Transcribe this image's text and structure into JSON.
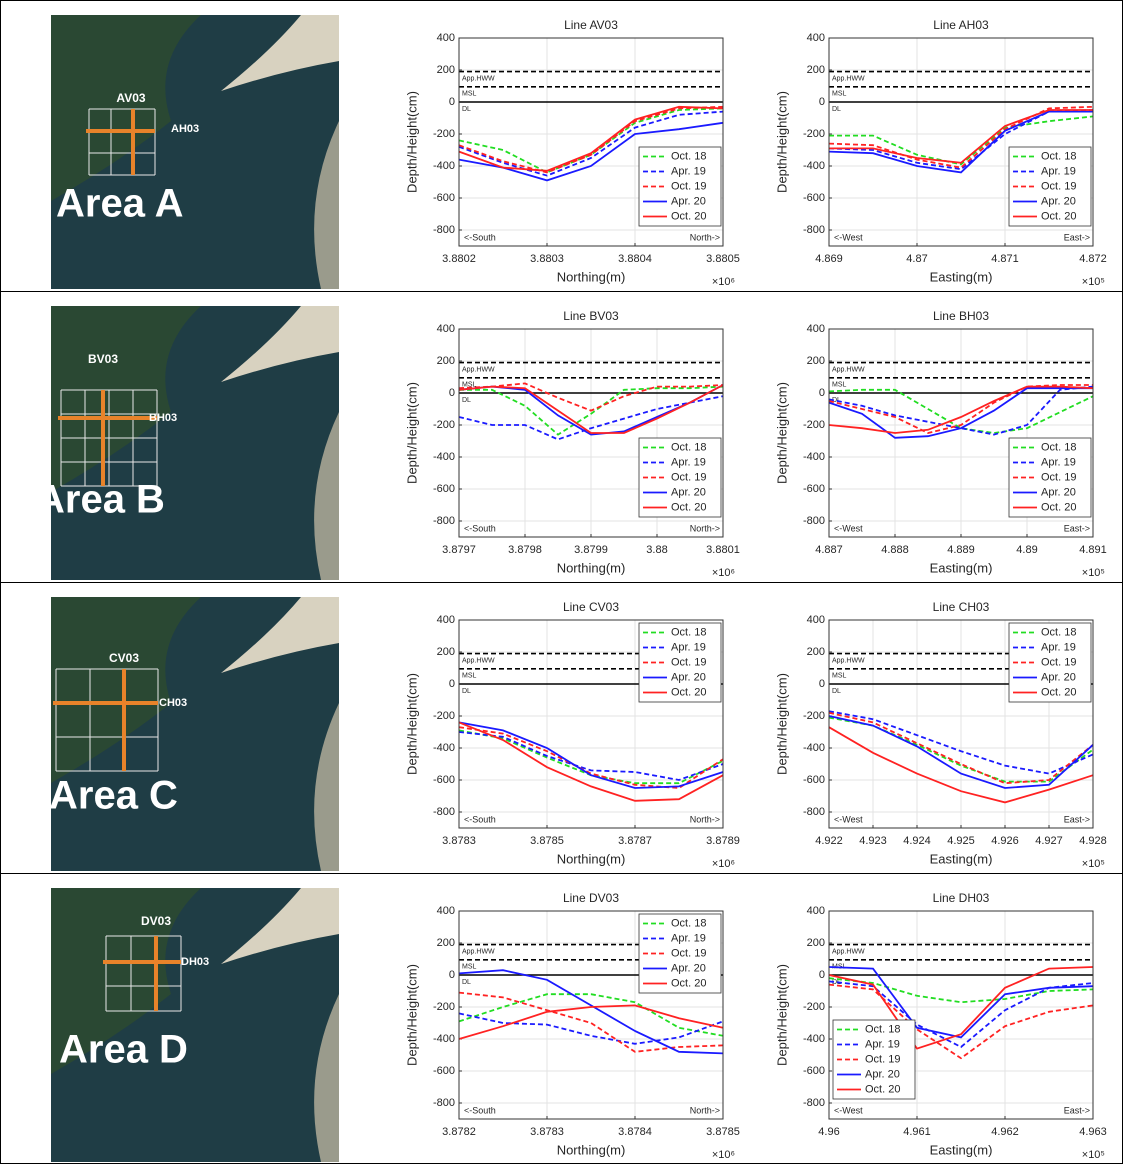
{
  "areas": [
    {
      "label": "Area A",
      "v_line": "AV03",
      "h_line": "AH03"
    },
    {
      "label": "Area B",
      "v_line": "BV03",
      "h_line": "BH03"
    },
    {
      "label": "Area C",
      "v_line": "CV03",
      "h_line": "CH03"
    },
    {
      "label": "Area D",
      "v_line": "DV03",
      "h_line": "DH03"
    }
  ],
  "chart_data": [
    {
      "type": "line",
      "title": "Line AV03",
      "xlabel": "Northing(m)",
      "ylabel": "Depth/Height(cm)",
      "x_multiplier": "×10⁶",
      "xlim": [
        3.8802,
        3.8805
      ],
      "xticks": [
        3.8802,
        3.8803,
        3.8804,
        3.8805
      ],
      "ylim": [
        -900,
        400
      ],
      "yticks": [
        400,
        200,
        0,
        -200,
        -400,
        -600,
        -800
      ],
      "grid": true,
      "legend": "lower right",
      "direction_labels": [
        "<-South",
        "North->"
      ],
      "reference_lines": [
        {
          "label": "App.HWW",
          "value": 190,
          "dash": true
        },
        {
          "label": "MSL",
          "value": 95,
          "dash": true
        },
        {
          "label": "DL",
          "value": 0,
          "dash": false
        }
      ],
      "x": [
        3.8802,
        3.88025,
        3.8803,
        3.88035,
        3.8804,
        3.88045,
        3.8805
      ],
      "series": [
        {
          "name": "Oct. 18",
          "color": "#22dd22",
          "dash": true,
          "values": [
            -240,
            -300,
            -440,
            -330,
            -130,
            -50,
            -40
          ]
        },
        {
          "name": "Apr. 19",
          "color": "#1a1aff",
          "dash": true,
          "values": [
            -280,
            -380,
            -460,
            -350,
            -160,
            -80,
            -60
          ]
        },
        {
          "name": "Oct. 19",
          "color": "#ff2222",
          "dash": true,
          "values": [
            -270,
            -370,
            -440,
            -330,
            -120,
            -40,
            -30
          ]
        },
        {
          "name": "Apr. 20",
          "color": "#1a1aff",
          "dash": false,
          "values": [
            -360,
            -410,
            -490,
            -400,
            -200,
            -170,
            -130
          ]
        },
        {
          "name": "Oct. 20",
          "color": "#ff2222",
          "dash": false,
          "values": [
            -310,
            -410,
            -430,
            -320,
            -110,
            -30,
            -40
          ]
        }
      ]
    },
    {
      "type": "line",
      "title": "Line AH03",
      "xlabel": "Easting(m)",
      "ylabel": "Depth/Height(cm)",
      "x_multiplier": "×10⁵",
      "xlim": [
        4.869,
        4.872
      ],
      "xticks": [
        4.869,
        4.87,
        4.871,
        4.872
      ],
      "ylim": [
        -900,
        400
      ],
      "yticks": [
        400,
        200,
        0,
        -200,
        -400,
        -600,
        -800
      ],
      "grid": true,
      "legend": "lower right",
      "direction_labels": [
        "<-West",
        "East->"
      ],
      "reference_lines": [
        {
          "label": "App.HWW",
          "value": 190,
          "dash": true
        },
        {
          "label": "MSL",
          "value": 95,
          "dash": true
        },
        {
          "label": "DL",
          "value": 0,
          "dash": false
        }
      ],
      "x": [
        4.869,
        4.8695,
        4.87,
        4.8705,
        4.871,
        4.8715,
        4.872
      ],
      "series": [
        {
          "name": "Oct. 18",
          "color": "#22dd22",
          "dash": true,
          "values": [
            -210,
            -210,
            -330,
            -390,
            -160,
            -120,
            -90
          ]
        },
        {
          "name": "Apr. 19",
          "color": "#1a1aff",
          "dash": true,
          "values": [
            -290,
            -300,
            -380,
            -420,
            -200,
            -60,
            -50
          ]
        },
        {
          "name": "Oct. 19",
          "color": "#ff2222",
          "dash": true,
          "values": [
            -260,
            -270,
            -360,
            -410,
            -170,
            -40,
            -30
          ]
        },
        {
          "name": "Apr. 20",
          "color": "#1a1aff",
          "dash": false,
          "values": [
            -310,
            -320,
            -400,
            -440,
            -180,
            -60,
            -60
          ]
        },
        {
          "name": "Oct. 20",
          "color": "#ff2222",
          "dash": false,
          "values": [
            -290,
            -290,
            -350,
            -380,
            -150,
            -50,
            -50
          ]
        }
      ]
    },
    {
      "type": "line",
      "title": "Line BV03",
      "xlabel": "Northing(m)",
      "ylabel": "Depth/Height(cm)",
      "x_multiplier": "×10⁶",
      "xlim": [
        3.8797,
        3.8801
      ],
      "xticks": [
        3.8797,
        3.8798,
        3.8799,
        3.88,
        3.8801
      ],
      "ylim": [
        -900,
        400
      ],
      "yticks": [
        400,
        200,
        0,
        -200,
        -400,
        -600,
        -800
      ],
      "grid": true,
      "legend": "lower right",
      "direction_labels": [
        "<-South",
        "North->"
      ],
      "reference_lines": [
        {
          "label": "App.HWW",
          "value": 190,
          "dash": true
        },
        {
          "label": "MSL",
          "value": 95,
          "dash": true
        },
        {
          "label": "DL",
          "value": 0,
          "dash": false
        }
      ],
      "x": [
        3.8797,
        3.87975,
        3.8798,
        3.87985,
        3.8799,
        3.87995,
        3.88,
        3.88005,
        3.8801
      ],
      "series": [
        {
          "name": "Oct. 18",
          "color": "#22dd22",
          "dash": true,
          "values": [
            20,
            20,
            -80,
            -260,
            -130,
            20,
            30,
            30,
            40
          ]
        },
        {
          "name": "Apr. 19",
          "color": "#1a1aff",
          "dash": true,
          "values": [
            -150,
            -200,
            -200,
            -290,
            -220,
            -160,
            -100,
            -60,
            -20
          ]
        },
        {
          "name": "Oct. 19",
          "color": "#ff2222",
          "dash": true,
          "values": [
            30,
            40,
            60,
            -30,
            -110,
            -20,
            40,
            40,
            50
          ]
        },
        {
          "name": "Apr. 20",
          "color": "#1a1aff",
          "dash": false,
          "values": [
            20,
            40,
            20,
            -140,
            -260,
            -240,
            -150,
            -60,
            50
          ]
        },
        {
          "name": "Oct. 20",
          "color": "#ff2222",
          "dash": false,
          "values": [
            20,
            40,
            30,
            -110,
            -250,
            -250,
            -160,
            -60,
            50
          ]
        }
      ]
    },
    {
      "type": "line",
      "title": "Line BH03",
      "xlabel": "Easting(m)",
      "ylabel": "Depth/Height(cm)",
      "x_multiplier": "×10⁵",
      "xlim": [
        4.887,
        4.891
      ],
      "xticks": [
        4.887,
        4.888,
        4.889,
        4.89,
        4.891
      ],
      "ylim": [
        -900,
        400
      ],
      "yticks": [
        400,
        200,
        0,
        -200,
        -400,
        -600,
        -800
      ],
      "grid": true,
      "legend": "lower right",
      "direction_labels": [
        "<-West",
        "East->"
      ],
      "reference_lines": [
        {
          "label": "App.HWW",
          "value": 190,
          "dash": true
        },
        {
          "label": "MSL",
          "value": 95,
          "dash": true
        },
        {
          "label": "DL",
          "value": 0,
          "dash": false
        }
      ],
      "x": [
        4.887,
        4.8875,
        4.888,
        4.8885,
        4.889,
        4.8895,
        4.89,
        4.8905,
        4.891
      ],
      "series": [
        {
          "name": "Oct. 18",
          "color": "#22dd22",
          "dash": true,
          "values": [
            10,
            20,
            20,
            -100,
            -220,
            -250,
            -220,
            -120,
            -20
          ]
        },
        {
          "name": "Apr. 19",
          "color": "#1a1aff",
          "dash": true,
          "values": [
            -40,
            -80,
            -140,
            -180,
            -220,
            -260,
            -200,
            20,
            40
          ]
        },
        {
          "name": "Oct. 19",
          "color": "#ff2222",
          "dash": true,
          "values": [
            -50,
            -100,
            -150,
            -250,
            -200,
            -60,
            40,
            50,
            50
          ]
        },
        {
          "name": "Apr. 20",
          "color": "#1a1aff",
          "dash": false,
          "values": [
            -60,
            -130,
            -280,
            -270,
            -220,
            -110,
            30,
            30,
            30
          ]
        },
        {
          "name": "Oct. 20",
          "color": "#ff2222",
          "dash": false,
          "values": [
            -200,
            -220,
            -250,
            -230,
            -150,
            -50,
            40,
            40,
            30
          ]
        }
      ]
    },
    {
      "type": "line",
      "title": "Line CV03",
      "xlabel": "Northing(m)",
      "ylabel": "Depth/Height(cm)",
      "x_multiplier": "×10⁶",
      "xlim": [
        3.8783,
        3.8789
      ],
      "xticks": [
        3.8783,
        3.8785,
        3.8787,
        3.8789
      ],
      "ylim": [
        -900,
        400
      ],
      "yticks": [
        400,
        200,
        0,
        -200,
        -400,
        -600,
        -800
      ],
      "grid": true,
      "legend": "upper right",
      "direction_labels": [
        "<-South",
        "North->"
      ],
      "reference_lines": [
        {
          "label": "App.HWW",
          "value": 190,
          "dash": true
        },
        {
          "label": "MSL",
          "value": 95,
          "dash": true
        },
        {
          "label": "DL",
          "value": 0,
          "dash": false
        }
      ],
      "x": [
        3.8783,
        3.8784,
        3.8785,
        3.8786,
        3.8787,
        3.8788,
        3.8789
      ],
      "series": [
        {
          "name": "Oct. 18",
          "color": "#22dd22",
          "dash": true,
          "values": [
            -290,
            -340,
            -460,
            -570,
            -620,
            -620,
            -480
          ]
        },
        {
          "name": "Apr. 19",
          "color": "#1a1aff",
          "dash": true,
          "values": [
            -300,
            -330,
            -450,
            -540,
            -550,
            -600,
            -500
          ]
        },
        {
          "name": "Oct. 19",
          "color": "#ff2222",
          "dash": true,
          "values": [
            -270,
            -310,
            -420,
            -560,
            -630,
            -650,
            -470
          ]
        },
        {
          "name": "Apr. 20",
          "color": "#1a1aff",
          "dash": false,
          "values": [
            -240,
            -290,
            -400,
            -570,
            -650,
            -640,
            -550
          ]
        },
        {
          "name": "Oct. 20",
          "color": "#ff2222",
          "dash": false,
          "values": [
            -240,
            -350,
            -520,
            -640,
            -730,
            -720,
            -570
          ]
        }
      ]
    },
    {
      "type": "line",
      "title": "Line CH03",
      "xlabel": "Easting(m)",
      "ylabel": "Depth/Height(cm)",
      "x_multiplier": "×10⁵",
      "xlim": [
        4.922,
        4.928
      ],
      "xticks": [
        4.922,
        4.923,
        4.924,
        4.925,
        4.926,
        4.927,
        4.928
      ],
      "ylim": [
        -900,
        400
      ],
      "yticks": [
        400,
        200,
        0,
        -200,
        -400,
        -600,
        -800
      ],
      "grid": true,
      "legend": "upper right",
      "direction_labels": [
        "<-West",
        "East->"
      ],
      "reference_lines": [
        {
          "label": "App.HWW",
          "value": 190,
          "dash": true
        },
        {
          "label": "MSL",
          "value": 95,
          "dash": true
        },
        {
          "label": "DL",
          "value": 0,
          "dash": false
        }
      ],
      "x": [
        4.922,
        4.923,
        4.924,
        4.925,
        4.926,
        4.927,
        4.928
      ],
      "series": [
        {
          "name": "Oct. 18",
          "color": "#22dd22",
          "dash": true,
          "values": [
            -210,
            -260,
            -380,
            -510,
            -610,
            -610,
            -410
          ]
        },
        {
          "name": "Apr. 19",
          "color": "#1a1aff",
          "dash": true,
          "values": [
            -170,
            -220,
            -320,
            -420,
            -510,
            -560,
            -440
          ]
        },
        {
          "name": "Oct. 19",
          "color": "#ff2222",
          "dash": true,
          "values": [
            -180,
            -240,
            -370,
            -500,
            -620,
            -600,
            -380
          ]
        },
        {
          "name": "Apr. 20",
          "color": "#1a1aff",
          "dash": false,
          "values": [
            -200,
            -260,
            -390,
            -560,
            -650,
            -630,
            -380
          ]
        },
        {
          "name": "Oct. 20",
          "color": "#ff2222",
          "dash": false,
          "values": [
            -270,
            -430,
            -560,
            -670,
            -740,
            -660,
            -570
          ]
        }
      ]
    },
    {
      "type": "line",
      "title": "Line DV03",
      "xlabel": "Northing(m)",
      "ylabel": "Depth/Height(cm)",
      "x_multiplier": "×10⁶",
      "xlim": [
        3.8782,
        3.8785
      ],
      "xticks": [
        3.8782,
        3.8783,
        3.8784,
        3.8785
      ],
      "ylim": [
        -900,
        400
      ],
      "yticks": [
        400,
        200,
        0,
        -200,
        -400,
        -600,
        -800
      ],
      "grid": true,
      "legend": "upper right",
      "direction_labels": [
        "<-South",
        "North->"
      ],
      "reference_lines": [
        {
          "label": "App.HWW",
          "value": 190,
          "dash": true
        },
        {
          "label": "MSL",
          "value": 95,
          "dash": true
        },
        {
          "label": "DL",
          "value": 0,
          "dash": false
        }
      ],
      "x": [
        3.8782,
        3.87825,
        3.8783,
        3.87835,
        3.8784,
        3.87845,
        3.8785
      ],
      "series": [
        {
          "name": "Oct. 18",
          "color": "#22dd22",
          "dash": true,
          "values": [
            -290,
            -200,
            -120,
            -120,
            -170,
            -330,
            -380
          ]
        },
        {
          "name": "Apr. 19",
          "color": "#1a1aff",
          "dash": true,
          "values": [
            -240,
            -300,
            -310,
            -380,
            -430,
            -390,
            -290
          ]
        },
        {
          "name": "Oct. 19",
          "color": "#ff2222",
          "dash": true,
          "values": [
            -110,
            -140,
            -220,
            -300,
            -480,
            -450,
            -440
          ]
        },
        {
          "name": "Apr. 20",
          "color": "#1a1aff",
          "dash": false,
          "values": [
            10,
            30,
            -30,
            -190,
            -350,
            -480,
            -490
          ]
        },
        {
          "name": "Oct. 20",
          "color": "#ff2222",
          "dash": false,
          "values": [
            -400,
            -320,
            -230,
            -200,
            -190,
            -270,
            -330
          ]
        }
      ]
    },
    {
      "type": "line",
      "title": "Line DH03",
      "xlabel": "Easting(m)",
      "ylabel": "Depth/Height(cm)",
      "x_multiplier": "×10⁵",
      "xlim": [
        4.96,
        4.963
      ],
      "xticks": [
        4.96,
        4.961,
        4.962,
        4.963
      ],
      "ylim": [
        -900,
        400
      ],
      "yticks": [
        400,
        200,
        0,
        -200,
        -400,
        -600,
        -800
      ],
      "grid": true,
      "legend": "lower left",
      "direction_labels": [
        "<-West",
        "East->"
      ],
      "reference_lines": [
        {
          "label": "App.HWW",
          "value": 190,
          "dash": true
        },
        {
          "label": "MSL",
          "value": 95,
          "dash": true
        },
        {
          "label": "DL",
          "value": 0,
          "dash": false
        }
      ],
      "x": [
        4.96,
        4.9605,
        4.961,
        4.9615,
        4.962,
        4.9625,
        4.963
      ],
      "series": [
        {
          "name": "Oct. 18",
          "color": "#22dd22",
          "dash": true,
          "values": [
            -20,
            -50,
            -130,
            -170,
            -150,
            -100,
            -90
          ]
        },
        {
          "name": "Apr. 19",
          "color": "#1a1aff",
          "dash": true,
          "values": [
            -40,
            -70,
            -310,
            -450,
            -220,
            -80,
            -50
          ]
        },
        {
          "name": "Oct. 19",
          "color": "#ff2222",
          "dash": true,
          "values": [
            -60,
            -90,
            -340,
            -520,
            -320,
            -230,
            -190
          ]
        },
        {
          "name": "Apr. 20",
          "color": "#1a1aff",
          "dash": false,
          "values": [
            50,
            40,
            -330,
            -390,
            -120,
            -80,
            -70
          ]
        },
        {
          "name": "Oct. 20",
          "color": "#ff2222",
          "dash": false,
          "values": [
            0,
            -60,
            -460,
            -370,
            -80,
            40,
            50
          ]
        }
      ]
    }
  ]
}
